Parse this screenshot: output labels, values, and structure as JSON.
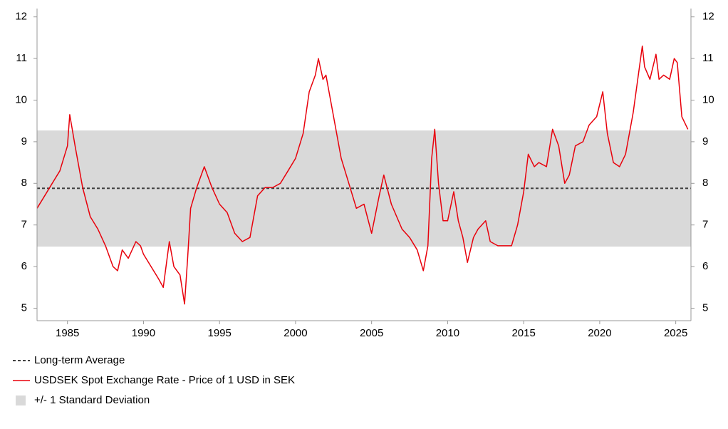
{
  "chart_data": {
    "type": "line",
    "xlim": [
      1983,
      2026
    ],
    "xticks": [
      1985,
      1990,
      1995,
      2000,
      2005,
      2010,
      2015,
      2020,
      2025
    ],
    "ylim": [
      4.7,
      12.2
    ],
    "yticks": [
      5,
      6,
      7,
      8,
      9,
      10,
      11,
      12
    ],
    "y2lim": [
      4.7,
      12.2
    ],
    "y2ticks": [
      5,
      6,
      7,
      8,
      9,
      10,
      11,
      12
    ],
    "reference_line": {
      "name": "Long-term Average",
      "value": 7.88,
      "color": "#404040"
    },
    "band": {
      "name": "+/- 1 Standard Deviation",
      "values": [
        6.48,
        9.27
      ],
      "color": "#d9d9d9"
    },
    "series": [
      {
        "name": "USDSEK Spot Exchange Rate - Price of 1 USD in SEK",
        "color": "#e8000b",
        "x": [
          1983.0,
          1983.5,
          1984.0,
          1984.5,
          1985.0,
          1985.15,
          1985.5,
          1986.0,
          1986.5,
          1987.0,
          1987.5,
          1988.0,
          1988.3,
          1988.6,
          1989.0,
          1989.5,
          1989.8,
          1990.0,
          1990.5,
          1991.0,
          1991.3,
          1991.7,
          1992.0,
          1992.4,
          1992.7,
          1992.9,
          1993.1,
          1993.5,
          1994.0,
          1994.5,
          1995.0,
          1995.5,
          1996.0,
          1996.5,
          1997.0,
          1997.5,
          1998.0,
          1998.5,
          1999.0,
          1999.5,
          2000.0,
          2000.5,
          2000.9,
          2001.3,
          2001.5,
          2001.8,
          2002.0,
          2002.5,
          2003.0,
          2003.5,
          2004.0,
          2004.5,
          2005.0,
          2005.5,
          2005.8,
          2006.3,
          2007.0,
          2007.5,
          2008.0,
          2008.4,
          2008.7,
          2008.95,
          2009.15,
          2009.4,
          2009.7,
          2010.0,
          2010.4,
          2010.7,
          2011.0,
          2011.3,
          2011.7,
          2012.0,
          2012.5,
          2012.8,
          2013.3,
          2013.8,
          2014.2,
          2014.6,
          2015.0,
          2015.3,
          2015.7,
          2016.0,
          2016.5,
          2016.9,
          2017.3,
          2017.7,
          2018.0,
          2018.4,
          2018.9,
          2019.3,
          2019.8,
          2020.2,
          2020.5,
          2020.9,
          2021.3,
          2021.7,
          2022.2,
          2022.8,
          2022.95,
          2023.3,
          2023.7,
          2023.9,
          2024.2,
          2024.6,
          2024.9,
          2025.1,
          2025.4,
          2025.8
        ],
        "values": [
          7.4,
          7.7,
          8.0,
          8.3,
          8.9,
          9.65,
          8.9,
          7.9,
          7.2,
          6.9,
          6.5,
          6.0,
          5.9,
          6.4,
          6.2,
          6.6,
          6.5,
          6.3,
          6.0,
          5.7,
          5.5,
          6.6,
          6.0,
          5.8,
          5.1,
          6.2,
          7.4,
          7.9,
          8.4,
          7.9,
          7.5,
          7.3,
          6.8,
          6.6,
          6.7,
          7.7,
          7.9,
          7.9,
          8.0,
          8.3,
          8.6,
          9.2,
          10.2,
          10.6,
          11.0,
          10.5,
          10.6,
          9.6,
          8.6,
          8.0,
          7.4,
          7.5,
          6.8,
          7.7,
          8.2,
          7.5,
          6.9,
          6.7,
          6.4,
          5.9,
          6.5,
          8.6,
          9.3,
          8.0,
          7.1,
          7.1,
          7.8,
          7.1,
          6.7,
          6.1,
          6.7,
          6.9,
          7.1,
          6.6,
          6.5,
          6.5,
          6.5,
          7.0,
          7.8,
          8.7,
          8.4,
          8.5,
          8.4,
          9.3,
          8.9,
          8.0,
          8.2,
          8.9,
          9.0,
          9.4,
          9.6,
          10.2,
          9.2,
          8.5,
          8.4,
          8.7,
          9.7,
          11.3,
          10.8,
          10.5,
          11.1,
          10.5,
          10.6,
          10.5,
          11.0,
          10.9,
          9.6,
          9.3
        ]
      }
    ]
  }
}
